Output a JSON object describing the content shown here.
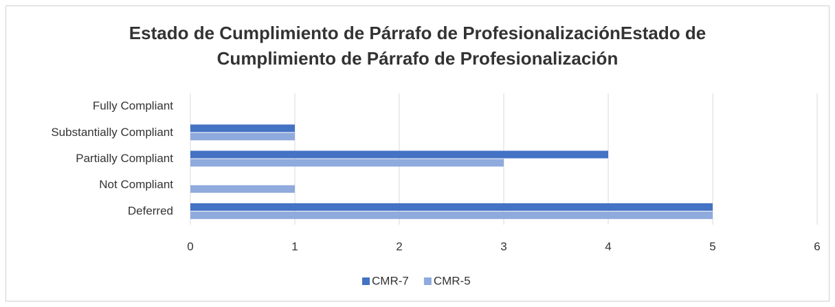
{
  "chart_data": {
    "type": "hbar",
    "title": "Estado de Cumplimiento de Párrafo de ProfesionalizaciónEstado de Cumplimiento de Párrafo de Profesionalización",
    "categories": [
      "Fully Compliant",
      "Substantially Compliant",
      "Partially Compliant",
      "Not Compliant",
      "Deferred"
    ],
    "series": [
      {
        "name": "CMR-7",
        "color": "#4472c4",
        "values": [
          0,
          1,
          4,
          0,
          5
        ]
      },
      {
        "name": "CMR-5",
        "color": "#8faadc",
        "values": [
          0,
          1,
          3,
          1,
          5
        ]
      }
    ],
    "xlim": [
      0,
      6
    ],
    "xticks": [
      0,
      1,
      2,
      3,
      4,
      5,
      6
    ],
    "grid": true,
    "legend": "bottom"
  }
}
